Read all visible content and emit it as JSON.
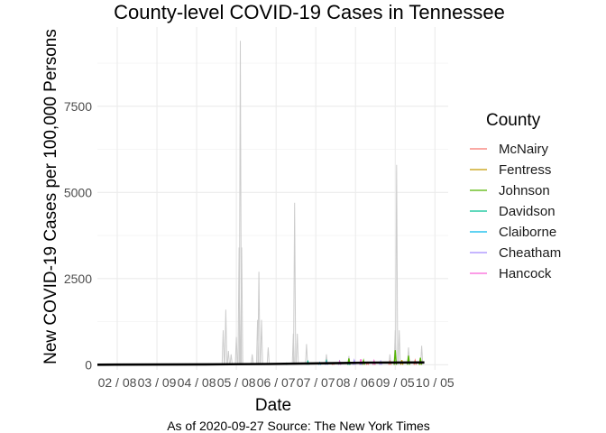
{
  "chart_data": {
    "type": "line",
    "title": "County-level COVID-19 Cases in Tennessee",
    "xlabel": "Date",
    "ylabel": "New COVID-19 Cases per 100,000 Persons",
    "caption": "As of 2020-09-27 Source: The New York Times",
    "x_ticks": [
      "02 / 08",
      "03 / 09",
      "04 / 08",
      "05 / 08",
      "06 / 07",
      "07 / 07",
      "08 / 06",
      "09 / 05",
      "10 / 05"
    ],
    "y_ticks": [
      0,
      2500,
      5000,
      7500
    ],
    "ylim": [
      -150,
      9800
    ],
    "xlim": [
      "2020-01-24",
      "2020-10-15"
    ],
    "grid": true,
    "legend": {
      "title": "County",
      "position": "right"
    },
    "series": [
      {
        "name": "McNairy",
        "color": "#F8766D",
        "points": [
          [
            "2020-07-20",
            40
          ],
          [
            "2020-08-01",
            70
          ],
          [
            "2020-08-15",
            60
          ],
          [
            "2020-09-01",
            90
          ],
          [
            "2020-09-20",
            120
          ]
        ]
      },
      {
        "name": "Fentress",
        "color": "#C49A00",
        "points": [
          [
            "2020-08-20",
            80
          ],
          [
            "2020-09-10",
            130
          ],
          [
            "2020-09-24",
            150
          ]
        ]
      },
      {
        "name": "Johnson",
        "color": "#53B400",
        "points": [
          [
            "2020-08-01",
            180
          ],
          [
            "2020-08-12",
            120
          ],
          [
            "2020-09-05",
            420
          ],
          [
            "2020-09-15",
            260
          ],
          [
            "2020-09-24",
            200
          ]
        ]
      },
      {
        "name": "Davidson",
        "color": "#00C094",
        "points": [
          [
            "2020-06-15",
            40
          ],
          [
            "2020-07-01",
            90
          ],
          [
            "2020-07-15",
            110
          ],
          [
            "2020-08-01",
            60
          ]
        ]
      },
      {
        "name": "Claiborne",
        "color": "#00B6EB",
        "points": [
          [
            "2020-07-10",
            60
          ],
          [
            "2020-07-25",
            90
          ],
          [
            "2020-08-10",
            50
          ]
        ]
      },
      {
        "name": "Cheatham",
        "color": "#A58AFF",
        "points": [
          [
            "2020-07-15",
            70
          ],
          [
            "2020-08-05",
            120
          ],
          [
            "2020-08-25",
            90
          ]
        ]
      },
      {
        "name": "Hancock",
        "color": "#FB61D7",
        "points": [
          [
            "2020-07-25",
            90
          ],
          [
            "2020-08-10",
            160
          ],
          [
            "2020-08-20",
            110
          ]
        ]
      }
    ],
    "other_counties_color": "#cccccc",
    "other_counties_spikes": [
      [
        "2020-04-28",
        1000
      ],
      [
        "2020-04-30",
        1600
      ],
      [
        "2020-05-02",
        400
      ],
      [
        "2020-05-04",
        300
      ],
      [
        "2020-05-08",
        800
      ],
      [
        "2020-05-10",
        3400
      ],
      [
        "2020-05-11",
        9400
      ],
      [
        "2020-05-12",
        3400
      ],
      [
        "2020-05-20",
        300
      ],
      [
        "2020-05-24",
        1300
      ],
      [
        "2020-05-25",
        2700
      ],
      [
        "2020-05-27",
        1300
      ],
      [
        "2020-06-01",
        500
      ],
      [
        "2020-06-20",
        900
      ],
      [
        "2020-06-21",
        4700
      ],
      [
        "2020-06-23",
        900
      ],
      [
        "2020-06-30",
        600
      ],
      [
        "2020-07-15",
        300
      ],
      [
        "2020-08-01",
        250
      ],
      [
        "2020-09-01",
        300
      ],
      [
        "2020-09-05",
        1000
      ],
      [
        "2020-09-06",
        5800
      ],
      [
        "2020-09-08",
        1000
      ],
      [
        "2020-09-15",
        500
      ],
      [
        "2020-09-25",
        550
      ]
    ],
    "state_average_color": "#000000",
    "state_average": [
      [
        "2020-01-24",
        0
      ],
      [
        "2020-04-15",
        10
      ],
      [
        "2020-06-01",
        20
      ],
      [
        "2020-07-15",
        40
      ],
      [
        "2020-08-15",
        60
      ],
      [
        "2020-09-27",
        65
      ]
    ]
  }
}
